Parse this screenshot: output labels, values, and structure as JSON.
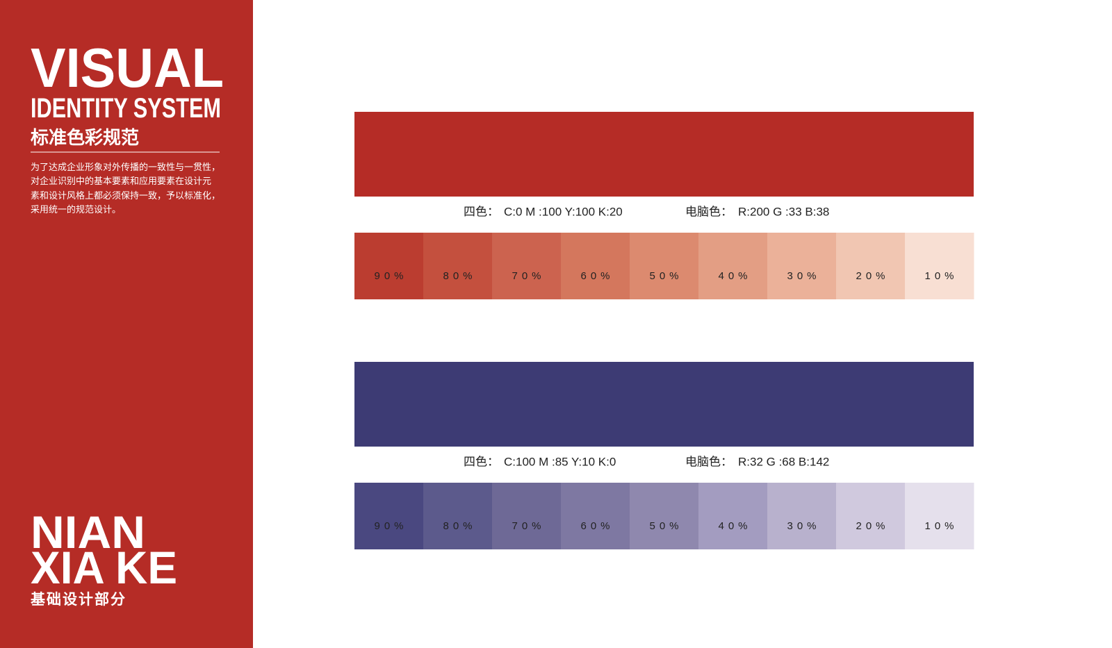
{
  "sidebar": {
    "title": "VISUAL",
    "subtitle": "IDENTITY SYSTEM",
    "heading": "标准色彩规范",
    "paragraph": [
      "为了达成企业形象对外传播的一致性与一贯性，",
      "对企业识别中的基本要素和应用要素在设计元",
      "素和设计风格上都必须保持一致，予以标准化，",
      "采用统一的规范设计。"
    ],
    "brand_line1": "NIAN",
    "brand_line2": "XIA KE",
    "section": "基础设计部分"
  },
  "palettes": [
    {
      "color": "#b52c26",
      "cmyk_label": "四色：",
      "cmyk": "C:0  M :100  Y:100  K:20",
      "rgb_label": "电脑色：",
      "rgb": "R:200  G :33  B:38",
      "tints": [
        {
          "label": "90%",
          "color": "#bb3d30"
        },
        {
          "label": "80%",
          "color": "#c4503e"
        },
        {
          "label": "70%",
          "color": "#cc634f"
        },
        {
          "label": "60%",
          "color": "#d4775d"
        },
        {
          "label": "50%",
          "color": "#dc8a6f"
        },
        {
          "label": "40%",
          "color": "#e39e84"
        },
        {
          "label": "30%",
          "color": "#ebb199"
        },
        {
          "label": "20%",
          "color": "#f1c6b2"
        },
        {
          "label": "10%",
          "color": "#f8dfd3"
        }
      ]
    },
    {
      "color": "#3d3b74",
      "cmyk_label": "四色：",
      "cmyk": "C:100  M :85  Y:10  K:0",
      "rgb_label": "电脑色：",
      "rgb": "R:32  G :68  B:142",
      "tints": [
        {
          "label": "90%",
          "color": "#4a4880"
        },
        {
          "label": "80%",
          "color": "#5c5a8c"
        },
        {
          "label": "70%",
          "color": "#6e6996"
        },
        {
          "label": "60%",
          "color": "#7e78a2"
        },
        {
          "label": "50%",
          "color": "#8f88ae"
        },
        {
          "label": "40%",
          "color": "#a39cc0"
        },
        {
          "label": "30%",
          "color": "#b8b1cd"
        },
        {
          "label": "20%",
          "color": "#d0c9de"
        },
        {
          "label": "10%",
          "color": "#e5e0ec"
        }
      ]
    }
  ]
}
